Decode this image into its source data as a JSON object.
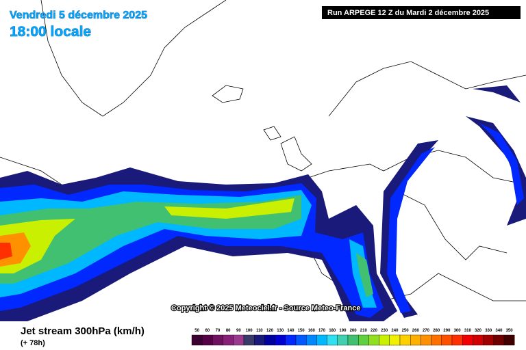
{
  "header": {
    "date": "Vendredi 5 décembre 2025",
    "time": "18:00 locale"
  },
  "run": "Run ARPEGE 12 Z du Mardi 2 décembre 2025",
  "copyright": "Copyright © 2025 Meteociel.fr - Source Meteo-France",
  "legend": {
    "title": "Jet stream 300hPa (km/h)",
    "lead": "(+ 78h)",
    "scale": {
      "values": [
        50,
        60,
        70,
        80,
        90,
        100,
        110,
        120,
        130,
        140,
        150,
        160,
        170,
        180,
        190,
        200,
        210,
        220,
        230,
        240,
        250,
        260,
        270,
        280,
        290,
        300,
        310,
        320,
        330,
        340,
        350
      ],
      "colors": [
        "#3a0030",
        "#560048",
        "#701060",
        "#882078",
        "#9a3a8e",
        "#3a3a6a",
        "#1a1a7a",
        "#0000a0",
        "#0000d0",
        "#0028ff",
        "#0058ff",
        "#0088ff",
        "#00b8ff",
        "#30e0f0",
        "#40d0b0",
        "#40c070",
        "#60d040",
        "#90e020",
        "#c8f000",
        "#f0f000",
        "#ffd000",
        "#ffb000",
        "#ff9000",
        "#ff7000",
        "#ff5000",
        "#ff3000",
        "#f00000",
        "#d00000",
        "#a00000",
        "#700000",
        "#400000"
      ]
    }
  }
}
